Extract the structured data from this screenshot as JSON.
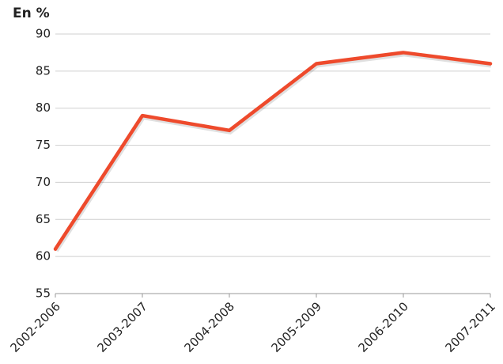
{
  "chart_data": {
    "type": "line",
    "title": "En %",
    "categories": [
      "2002-2006",
      "2003-2007",
      "2004-2008",
      "2005-2009",
      "2006-2010",
      "2007-2011"
    ],
    "values": [
      61,
      79,
      77,
      86,
      87.5,
      86
    ],
    "color": "#ee4a2c",
    "ylim": [
      55,
      90
    ],
    "yticks": [
      55,
      60,
      65,
      70,
      75,
      80,
      85,
      90
    ],
    "grid": true
  }
}
